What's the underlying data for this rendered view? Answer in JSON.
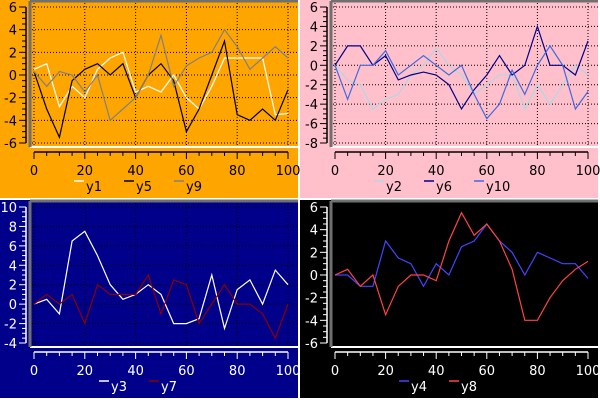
{
  "chart_data": [
    {
      "type": "line",
      "background": "#ffa500",
      "fg": "#000000",
      "xlim": [
        0,
        100
      ],
      "ylim": [
        -6,
        6
      ],
      "xticks": [
        "0",
        "20",
        "40",
        "60",
        "80",
        "100"
      ],
      "yticks": [
        "-6",
        "-4",
        "-2",
        "0",
        "2",
        "4",
        "6"
      ],
      "grid": true,
      "legend_placement": "bottom",
      "x": [
        0,
        5,
        10,
        15,
        20,
        25,
        30,
        35,
        40,
        45,
        50,
        55,
        60,
        65,
        70,
        75,
        80,
        85,
        90,
        95,
        100
      ],
      "series": [
        {
          "name": "y1",
          "color": "#ffffff",
          "values": [
            0.5,
            1,
            -2.8,
            -1,
            -2,
            0.5,
            1.5,
            2,
            -1.5,
            -1,
            -1.5,
            0,
            -2,
            -3,
            -1,
            1.5,
            1.5,
            1.5,
            1.5,
            -3.5,
            -3.4
          ]
        },
        {
          "name": "y5",
          "color": "#000000",
          "values": [
            0.3,
            -3,
            -5.5,
            -0.5,
            0.5,
            1,
            0,
            1,
            -2,
            0,
            1,
            -0.5,
            -5,
            -3,
            0,
            3,
            -3.5,
            -4,
            -3,
            -4,
            -1.3
          ]
        },
        {
          "name": "y9",
          "color": "#808080",
          "values": [
            0.3,
            -1,
            0.3,
            0,
            -1.5,
            0,
            -4,
            -3,
            -2,
            0,
            3.5,
            -1,
            0.8,
            1.5,
            2,
            4,
            2.5,
            0.5,
            1.5,
            2.5,
            1.5
          ]
        }
      ]
    },
    {
      "type": "line",
      "background": "#ffc0cb",
      "fg": "#000000",
      "xlim": [
        0,
        100
      ],
      "ylim": [
        -8,
        6
      ],
      "xticks": [
        "0",
        "20",
        "40",
        "60",
        "80",
        "100"
      ],
      "yticks": [
        "-8",
        "-6",
        "-4",
        "-2",
        "0",
        "2",
        "4",
        "6"
      ],
      "grid": true,
      "legend_placement": "bottom",
      "x": [
        0,
        5,
        10,
        15,
        20,
        25,
        30,
        35,
        40,
        45,
        50,
        55,
        60,
        65,
        70,
        75,
        80,
        85,
        90,
        95,
        100
      ],
      "series": [
        {
          "name": "y2",
          "color": "#add8e6",
          "values": [
            0,
            -1.5,
            -2,
            -4.5,
            -3.5,
            -3,
            -1,
            0,
            1.8,
            0,
            -1,
            -3,
            -2,
            -1,
            -1,
            -4.5,
            -2,
            -4,
            -2,
            0,
            -1
          ]
        },
        {
          "name": "y6",
          "color": "#00008b",
          "values": [
            0,
            2,
            2,
            0,
            1,
            -1.5,
            -1,
            -0.7,
            -1,
            -2,
            -4.5,
            -2.5,
            -1,
            1,
            -1,
            0,
            4,
            0,
            0,
            -1,
            2.5
          ]
        },
        {
          "name": "y10",
          "color": "#4169e1",
          "values": [
            0,
            -3.5,
            0,
            0,
            1.5,
            -1,
            0,
            1,
            0,
            -1,
            0,
            -3,
            -5.5,
            -4,
            -0.5,
            -3,
            0,
            2,
            0,
            -4.5,
            -2.7
          ]
        }
      ]
    },
    {
      "type": "line",
      "background": "#00008b",
      "fg": "#ffffff",
      "xlim": [
        0,
        100
      ],
      "ylim": [
        -4,
        10
      ],
      "xticks": [
        "0",
        "20",
        "40",
        "60",
        "80",
        "100"
      ],
      "yticks": [
        "-4",
        "-2",
        "0",
        "2",
        "4",
        "6",
        "8",
        "10"
      ],
      "grid": true,
      "legend_placement": "bottom",
      "x": [
        0,
        5,
        10,
        15,
        20,
        25,
        30,
        35,
        40,
        45,
        50,
        55,
        60,
        65,
        70,
        75,
        80,
        85,
        90,
        95,
        100
      ],
      "series": [
        {
          "name": "y3",
          "color": "#ffffff",
          "values": [
            0,
            0.5,
            -1,
            6.5,
            7.5,
            5,
            2,
            0.5,
            1,
            2,
            1,
            -2,
            -2,
            -1.5,
            3,
            -2.5,
            1.5,
            2.5,
            0,
            3.5,
            2
          ]
        },
        {
          "name": "y7",
          "color": "#8b0000",
          "values": [
            0,
            1,
            0,
            1,
            -2,
            2,
            1,
            1,
            1,
            3,
            -1,
            2.5,
            2,
            -2,
            0,
            2,
            0,
            0,
            -1,
            -3.5,
            0
          ]
        }
      ]
    },
    {
      "type": "line",
      "background": "#000000",
      "fg": "#ffffff",
      "xlim": [
        0,
        100
      ],
      "ylim": [
        -6,
        6
      ],
      "xticks": [
        "0",
        "20",
        "40",
        "60",
        "80",
        "100"
      ],
      "yticks": [
        "-6",
        "-4",
        "-2",
        "0",
        "2",
        "4",
        "6"
      ],
      "grid": false,
      "legend_placement": "bottom",
      "x": [
        0,
        5,
        10,
        15,
        20,
        25,
        30,
        35,
        40,
        45,
        50,
        55,
        60,
        65,
        70,
        75,
        80,
        85,
        90,
        95,
        100
      ],
      "series": [
        {
          "name": "y4",
          "color": "#4444ff",
          "values": [
            0,
            0,
            -1,
            -1,
            3,
            1.5,
            1,
            -1,
            1,
            0,
            2.5,
            3,
            4.5,
            3,
            2,
            0,
            2,
            1.5,
            1,
            1,
            -0.3
          ]
        },
        {
          "name": "y8",
          "color": "#ff4444",
          "values": [
            0,
            0.5,
            -1,
            0,
            -3.5,
            -1,
            0,
            0,
            -0.5,
            3,
            5.5,
            3.5,
            4.5,
            3,
            0.5,
            -4,
            -4,
            -2,
            -0.5,
            0.5,
            1.2
          ]
        }
      ]
    }
  ]
}
